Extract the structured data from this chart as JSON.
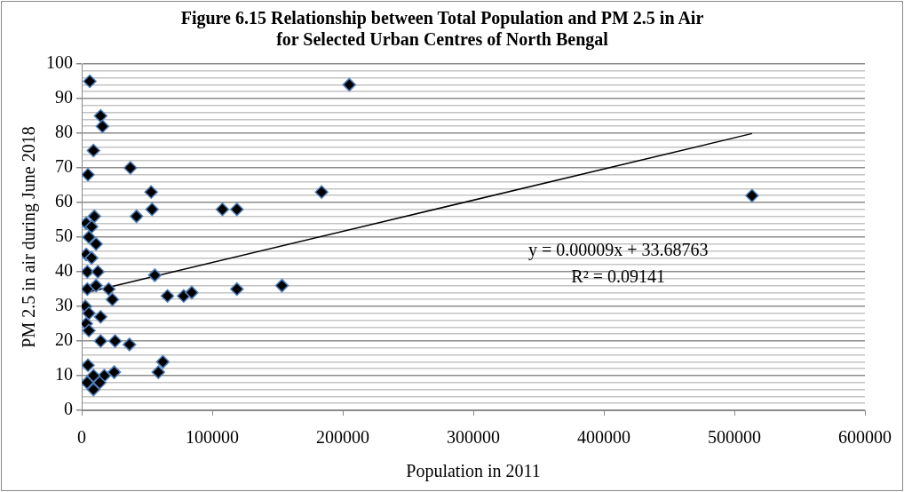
{
  "chart_data": {
    "type": "scatter",
    "title": "Figure 6.15 Relationship between Total Population and PM 2.5 in Air\nfor Selected Urban Centres of North Bengal",
    "xlabel": "Population in 2011",
    "ylabel": "PM 2.5 in air during June 2018",
    "series": [
      {
        "type": "scatter",
        "color": "#000000",
        "marker": "diamond",
        "x": [
          6200,
          14500,
          15900,
          9000,
          37300,
          4800,
          53200,
          53900,
          42000,
          9700,
          3500,
          7600,
          5500,
          11000,
          3500,
          7600,
          4300,
          12400,
          56000,
          4300,
          11000,
          20700,
          23500,
          65700,
          2800,
          5500,
          14500,
          3500,
          5500,
          14500,
          25600,
          36600,
          4800,
          62200,
          58700,
          24900,
          17300,
          4100,
          13800,
          9000,
          9000,
          107800,
          118900,
          183800,
          118900,
          153400,
          78100,
          84300,
          205000,
          513500
        ],
        "values": [
          95,
          85,
          82,
          75,
          70,
          68,
          63,
          58,
          56,
          56,
          54,
          53,
          50,
          48,
          45,
          44,
          40,
          40,
          39,
          35,
          36,
          35,
          32,
          33,
          30,
          28,
          27,
          25,
          23,
          20,
          20,
          19,
          13,
          14,
          11,
          11,
          10,
          8,
          8,
          6,
          10,
          58,
          58,
          63,
          35,
          36,
          33,
          34,
          94,
          62
        ]
      },
      {
        "type": "line",
        "color": "#000000",
        "marker": "none",
        "line_style": "solid",
        "x": [
          2800,
          513500
        ],
        "values": [
          33.9,
          79.9
        ]
      }
    ],
    "xlim": [
      0,
      600000
    ],
    "xticks": [
      0,
      100000,
      200000,
      300000,
      400000,
      500000,
      600000
    ],
    "ylim": [
      0,
      100
    ],
    "yticks": [
      0,
      {
        "value": 2,
        "label": null
      },
      {
        "value": 4,
        "label": null
      },
      {
        "value": 6,
        "label": null
      },
      {
        "value": 8,
        "label": null
      },
      10,
      {
        "value": 12,
        "label": null
      },
      {
        "value": 14,
        "label": null
      },
      {
        "value": 16,
        "label": null
      },
      {
        "value": 18,
        "label": null
      },
      20,
      {
        "value": 22,
        "label": null
      },
      {
        "value": 24,
        "label": null
      },
      {
        "value": 26,
        "label": null
      },
      {
        "value": 28,
        "label": null
      },
      30,
      {
        "value": 32,
        "label": null
      },
      {
        "value": 34,
        "label": null
      },
      {
        "value": 36,
        "label": null
      },
      {
        "value": 38,
        "label": null
      },
      40,
      {
        "value": 42,
        "label": null
      },
      {
        "value": 44,
        "label": null
      },
      {
        "value": 46,
        "label": null
      },
      {
        "value": 48,
        "label": null
      },
      50,
      {
        "value": 52,
        "label": null
      },
      {
        "value": 54,
        "label": null
      },
      {
        "value": 56,
        "label": null
      },
      {
        "value": 58,
        "label": null
      },
      60,
      {
        "value": 62,
        "label": null
      },
      {
        "value": 64,
        "label": null
      },
      {
        "value": 66,
        "label": null
      },
      {
        "value": 68,
        "label": null
      },
      70,
      {
        "value": 72,
        "label": null
      },
      {
        "value": 74,
        "label": null
      },
      {
        "value": 76,
        "label": null
      },
      {
        "value": 78,
        "label": null
      },
      80,
      {
        "value": 82,
        "label": null
      },
      {
        "value": 84,
        "label": null
      },
      {
        "value": 86,
        "label": null
      },
      {
        "value": 88,
        "label": null
      },
      90,
      {
        "value": 92,
        "label": null
      },
      {
        "value": 94,
        "label": null
      },
      {
        "value": 96,
        "label": null
      },
      {
        "value": 98,
        "label": null
      },
      100
    ],
    "grid": "y",
    "legend": false,
    "annotations": [
      "y = 0.00009x + 33.68763",
      "R² = 0.09141"
    ]
  }
}
